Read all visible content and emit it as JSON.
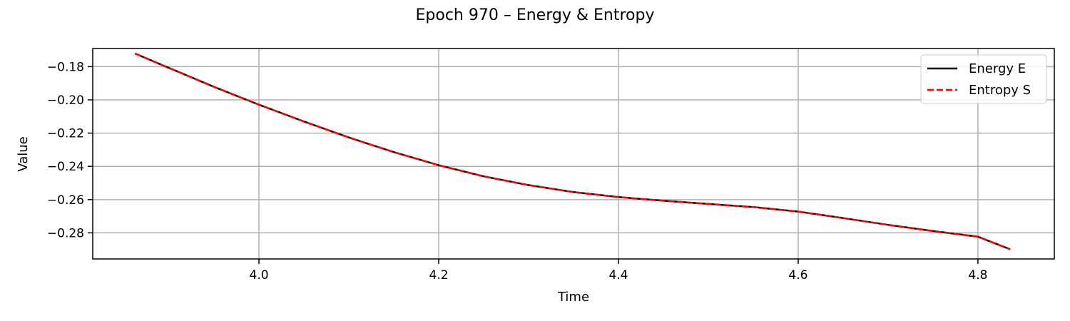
{
  "chart_data": {
    "type": "line",
    "title": "Epoch 970 – Energy & Entropy",
    "xlabel": "Time",
    "ylabel": "Value",
    "xlim": [
      3.815,
      4.885
    ],
    "ylim": [
      -0.2957,
      -0.1691
    ],
    "xticks": [
      4.0,
      4.2,
      4.4,
      4.6,
      4.8
    ],
    "xtick_labels": [
      "4.0",
      "4.2",
      "4.4",
      "4.6",
      "4.8"
    ],
    "yticks": [
      -0.18,
      -0.2,
      -0.22,
      -0.24,
      -0.26,
      -0.28
    ],
    "ytick_labels": [
      "−0.18",
      "−0.20",
      "−0.22",
      "−0.24",
      "−0.26",
      "−0.28"
    ],
    "grid": true,
    "legend_position": "top-right",
    "x": [
      3.862,
      3.9,
      3.95,
      4.0,
      4.05,
      4.1,
      4.15,
      4.2,
      4.25,
      4.3,
      4.35,
      4.4,
      4.45,
      4.5,
      4.55,
      4.6,
      4.65,
      4.7,
      4.75,
      4.8,
      4.836
    ],
    "series": [
      {
        "name": "Energy E",
        "color": "#000000",
        "style": "solid",
        "values": [
          -0.1721,
          -0.1808,
          -0.1922,
          -0.2029,
          -0.213,
          -0.2226,
          -0.2314,
          -0.2393,
          -0.246,
          -0.2513,
          -0.2555,
          -0.2585,
          -0.2607,
          -0.2626,
          -0.2645,
          -0.2672,
          -0.2711,
          -0.2752,
          -0.2789,
          -0.2823,
          -0.2899
        ]
      },
      {
        "name": "Entropy S",
        "color": "#ff0000",
        "style": "dashed",
        "values": [
          -0.1721,
          -0.1808,
          -0.1922,
          -0.2029,
          -0.213,
          -0.2226,
          -0.2314,
          -0.2393,
          -0.246,
          -0.2513,
          -0.2555,
          -0.2585,
          -0.2607,
          -0.2626,
          -0.2645,
          -0.2672,
          -0.2711,
          -0.2752,
          -0.2789,
          -0.2823,
          -0.2899
        ]
      }
    ]
  }
}
